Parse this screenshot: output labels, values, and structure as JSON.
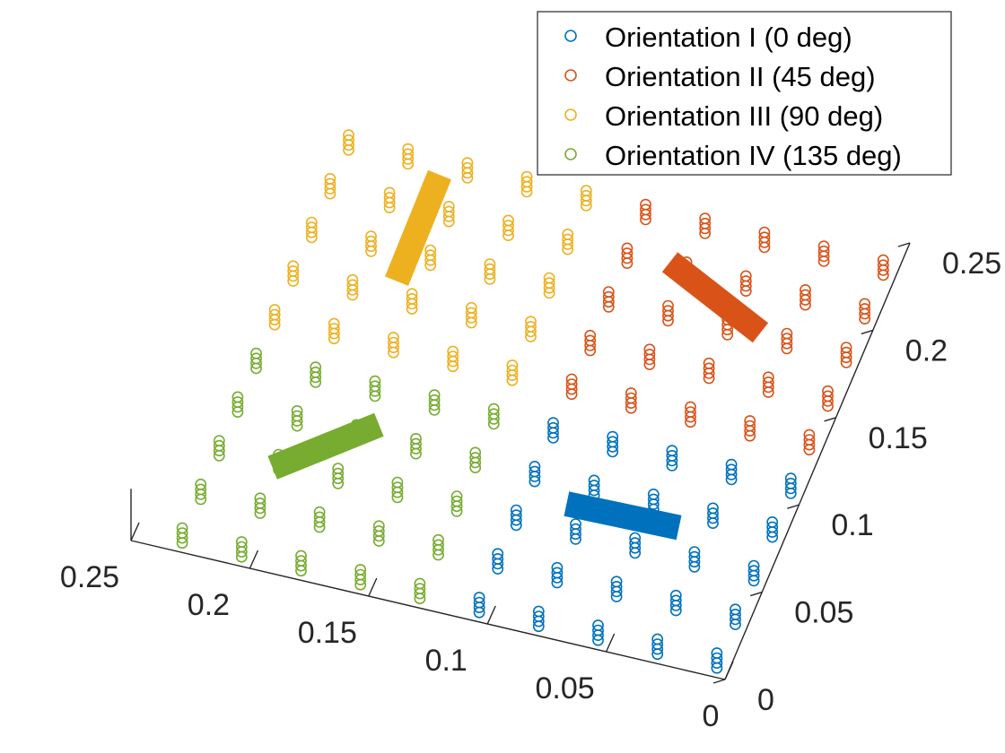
{
  "chart_data": {
    "type": "scatter3d",
    "title": "",
    "xlabel": "",
    "ylabel": "",
    "zlabel": "",
    "xlim": [
      0,
      0.25
    ],
    "ylim": [
      0,
      0.25
    ],
    "zlim": [
      0,
      0.25
    ],
    "x_ticks": [
      0,
      0.05,
      0.1,
      0.15,
      0.2,
      0.25
    ],
    "y_ticks": [
      0,
      0.05,
      0.1,
      0.15,
      0.2,
      0.25
    ],
    "x_tick_labels": [
      "0",
      "0.05",
      "0.1",
      "0.15",
      "0.2",
      "0.25"
    ],
    "y_tick_labels": [
      "0",
      "0.05",
      "0.1",
      "0.15",
      "0.2",
      "0.25"
    ],
    "grid": false,
    "legend_position": "top-right",
    "series": [
      {
        "name": "Orientation I (0 deg)",
        "color": "#0072BD",
        "marker": "circle",
        "x_range": [
          0.0,
          0.125
        ],
        "y_range": [
          0.0,
          0.125
        ],
        "grid_columns": 5,
        "grid_rows": 5,
        "points_per_stack": 4,
        "z_range": [
          0.0,
          0.015
        ],
        "sensor_position": [
          0.0625,
          0.0625,
          0.02
        ],
        "sensor_angle_deg": 0
      },
      {
        "name": "Orientation II (45 deg)",
        "color": "#D95319",
        "marker": "circle",
        "x_range": [
          0.0,
          0.125
        ],
        "y_range": [
          0.125,
          0.25
        ],
        "grid_columns": 5,
        "grid_rows": 5,
        "points_per_stack": 4,
        "z_range": [
          0.0,
          0.015
        ],
        "sensor_position": [
          0.0625,
          0.1875,
          0.02
        ],
        "sensor_angle_deg": 45
      },
      {
        "name": "Orientation III (90 deg)",
        "color": "#EDB120",
        "marker": "circle",
        "x_range": [
          0.125,
          0.25
        ],
        "y_range": [
          0.125,
          0.25
        ],
        "grid_columns": 5,
        "grid_rows": 5,
        "points_per_stack": 4,
        "z_range": [
          0.0,
          0.015
        ],
        "sensor_position": [
          0.1875,
          0.1875,
          0.02
        ],
        "sensor_angle_deg": 90
      },
      {
        "name": "Orientation IV (135 deg)",
        "color": "#77AC30",
        "marker": "circle",
        "x_range": [
          0.125,
          0.25
        ],
        "y_range": [
          0.0,
          0.125
        ],
        "grid_columns": 5,
        "grid_rows": 5,
        "points_per_stack": 4,
        "z_range": [
          0.0,
          0.015
        ],
        "sensor_position": [
          0.1875,
          0.0625,
          0.02
        ],
        "sensor_angle_deg": 135
      }
    ]
  }
}
